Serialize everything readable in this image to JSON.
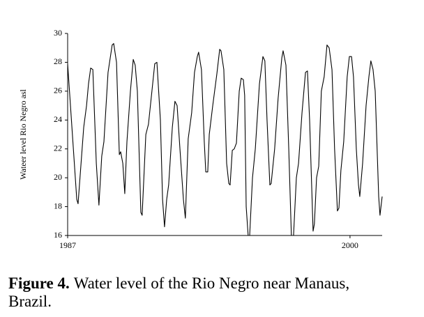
{
  "chart_data": {
    "type": "line",
    "ylabel": "Wateer level Rio Negro asl",
    "caption_label": "Figure 4.",
    "caption": "Water level of the Rio Negro near Manaus, Brazil.",
    "xlim": [
      1987,
      2001.48
    ],
    "xticks": [
      1987,
      2000
    ],
    "ylim": [
      16,
      30
    ],
    "yticks": [
      16,
      18,
      20,
      22,
      24,
      26,
      28,
      30
    ],
    "grid": false,
    "series": [
      {
        "color": "#000000",
        "x": [
          1987.0,
          1987.42,
          1987.48,
          1987.74,
          1987.87,
          1987.96,
          1988.06,
          1988.16,
          1988.32,
          1988.44,
          1988.57,
          1988.67,
          1988.86,
          1989.05,
          1989.12,
          1989.25,
          1989.38,
          1989.44,
          1989.54,
          1989.63,
          1989.73,
          1989.89,
          1990.02,
          1990.11,
          1990.21,
          1990.37,
          1990.43,
          1990.6,
          1990.72,
          1990.88,
          1991.01,
          1991.11,
          1991.27,
          1991.37,
          1991.46,
          1991.56,
          1991.65,
          1991.82,
          1991.94,
          1992.04,
          1992.17,
          1992.33,
          1992.42,
          1992.55,
          1992.71,
          1992.84,
          1992.97,
          1993.03,
          1993.16,
          1993.29,
          1993.36,
          1993.45,
          1993.52,
          1993.68,
          1993.87,
          1994.0,
          1994.06,
          1994.19,
          1994.32,
          1994.42,
          1994.48,
          1994.58,
          1994.67,
          1994.77,
          1994.9,
          1994.99,
          1995.09,
          1995.15,
          1995.22,
          1995.31,
          1995.38,
          1995.51,
          1995.64,
          1995.83,
          1995.99,
          1996.08,
          1996.18,
          1996.31,
          1996.37,
          1996.53,
          1996.69,
          1996.86,
          1996.92,
          1997.05,
          1997.18,
          1997.3,
          1997.4,
          1997.53,
          1997.63,
          1997.79,
          1997.95,
          1998.04,
          1998.14,
          1998.3,
          1998.36,
          1998.46,
          1998.56,
          1998.68,
          1998.81,
          1998.94,
          1999.04,
          1999.17,
          1999.29,
          1999.42,
          1999.49,
          1999.58,
          1999.71,
          1999.87,
          1999.97,
          2000.07,
          2000.16,
          2000.29,
          2000.39,
          2000.45,
          2000.58,
          2000.74,
          2000.87,
          2000.96,
          2001.06,
          2001.16,
          2001.32,
          2001.38,
          2001.48
        ],
        "values": [
          27.9,
          18.5,
          18.2,
          23.5,
          25.0,
          26.5,
          27.6,
          27.5,
          21.0,
          18.1,
          21.5,
          22.5,
          27.3,
          29.2,
          29.3,
          28.0,
          21.6,
          21.8,
          21.0,
          18.9,
          22.5,
          26.0,
          28.2,
          27.8,
          26.0,
          17.6,
          17.4,
          23.0,
          23.7,
          26.0,
          27.9,
          28.0,
          24.0,
          18.5,
          16.6,
          18.5,
          19.5,
          23.5,
          25.3,
          25.0,
          22.0,
          18.5,
          17.2,
          22.7,
          24.5,
          27.3,
          28.4,
          28.7,
          27.5,
          22.5,
          20.4,
          20.4,
          23.0,
          25.0,
          27.2,
          28.9,
          28.8,
          27.5,
          21.0,
          19.6,
          19.5,
          21.9,
          22.0,
          22.4,
          26.0,
          26.9,
          26.8,
          25.7,
          18.0,
          16.0,
          16.0,
          20.0,
          22.0,
          26.5,
          28.4,
          28.1,
          24.0,
          19.5,
          19.6,
          22.0,
          25.5,
          28.3,
          28.8,
          27.8,
          22.0,
          16.0,
          16.0,
          20.0,
          21.0,
          24.5,
          27.3,
          27.4,
          24.0,
          16.3,
          16.8,
          20.0,
          20.8,
          26.0,
          27.0,
          29.2,
          29.0,
          27.5,
          22.0,
          17.7,
          17.9,
          20.5,
          22.5,
          27.0,
          28.4,
          28.4,
          27.0,
          22.0,
          19.5,
          18.7,
          21.0,
          25.0,
          27.0,
          28.1,
          27.5,
          26.0,
          18.7,
          17.4,
          18.7
        ]
      }
    ]
  }
}
